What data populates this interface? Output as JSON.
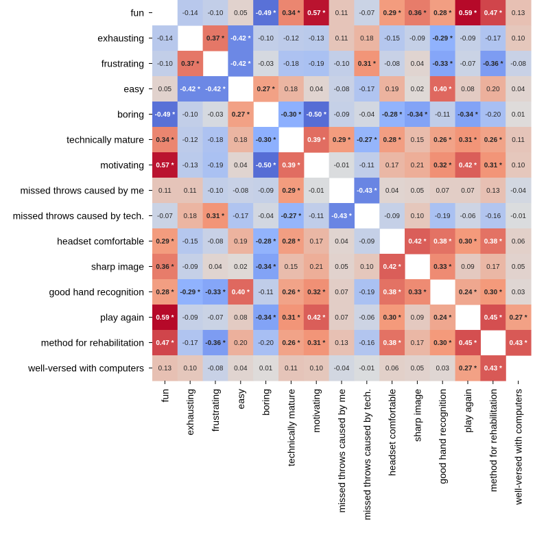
{
  "chart_data": {
    "type": "heatmap",
    "title": "",
    "xlabel": "",
    "ylabel": "",
    "colormap": "coolwarm",
    "vmin": -0.6,
    "vmax": 0.6,
    "significance_marker": "*",
    "labels": [
      "fun",
      "exhausting",
      "frustrating",
      "easy",
      "boring",
      "technically mature",
      "motivating",
      "missed throws caused by me",
      "missed throws caused by tech.",
      "headset comfortable",
      "sharp image",
      "good hand recognition",
      "play again",
      "method for rehabilitation",
      "well-versed with computers"
    ],
    "values": [
      [
        null,
        -0.14,
        -0.1,
        0.05,
        -0.49,
        0.34,
        0.57,
        0.11,
        -0.07,
        0.29,
        0.36,
        0.28,
        0.59,
        0.47,
        0.13
      ],
      [
        -0.14,
        null,
        0.37,
        -0.42,
        -0.1,
        -0.12,
        -0.13,
        0.11,
        0.18,
        -0.15,
        -0.09,
        -0.29,
        -0.09,
        -0.17,
        0.1
      ],
      [
        -0.1,
        0.37,
        null,
        -0.42,
        -0.03,
        -0.18,
        -0.19,
        -0.1,
        0.31,
        -0.08,
        0.04,
        -0.33,
        -0.07,
        -0.36,
        -0.08
      ],
      [
        0.05,
        -0.42,
        -0.42,
        null,
        0.27,
        0.18,
        0.04,
        -0.08,
        -0.17,
        0.19,
        0.02,
        0.4,
        0.08,
        0.2,
        0.04
      ],
      [
        -0.49,
        -0.1,
        -0.03,
        0.27,
        null,
        -0.3,
        -0.5,
        -0.09,
        -0.04,
        -0.28,
        -0.34,
        -0.11,
        -0.34,
        -0.2,
        0.01
      ],
      [
        0.34,
        -0.12,
        -0.18,
        0.18,
        -0.3,
        null,
        0.39,
        0.29,
        -0.27,
        0.28,
        0.15,
        0.26,
        0.31,
        0.26,
        0.11
      ],
      [
        0.57,
        -0.13,
        -0.19,
        0.04,
        -0.5,
        0.39,
        null,
        -0.01,
        -0.11,
        0.17,
        0.21,
        0.32,
        0.42,
        0.31,
        0.1
      ],
      [
        0.11,
        0.11,
        -0.1,
        -0.08,
        -0.09,
        0.29,
        -0.01,
        null,
        -0.43,
        0.04,
        0.05,
        0.07,
        0.07,
        0.13,
        -0.04
      ],
      [
        -0.07,
        0.18,
        0.31,
        -0.17,
        -0.04,
        -0.27,
        -0.11,
        -0.43,
        null,
        -0.09,
        0.1,
        -0.19,
        -0.06,
        -0.16,
        -0.01
      ],
      [
        0.29,
        -0.15,
        -0.08,
        0.19,
        -0.28,
        0.28,
        0.17,
        0.04,
        -0.09,
        null,
        0.42,
        0.38,
        0.3,
        0.38,
        0.06
      ],
      [
        0.36,
        -0.09,
        0.04,
        0.02,
        -0.34,
        0.15,
        0.21,
        0.05,
        0.1,
        0.42,
        null,
        0.33,
        0.09,
        0.17,
        0.05
      ],
      [
        0.28,
        -0.29,
        -0.33,
        0.4,
        -0.11,
        0.26,
        0.32,
        0.07,
        -0.19,
        0.38,
        0.33,
        null,
        0.24,
        0.3,
        0.03
      ],
      [
        0.59,
        -0.09,
        -0.07,
        0.08,
        -0.34,
        0.31,
        0.42,
        0.07,
        -0.06,
        0.3,
        0.09,
        0.24,
        null,
        0.45,
        0.27
      ],
      [
        0.47,
        -0.17,
        -0.36,
        0.2,
        -0.2,
        0.26,
        0.31,
        0.13,
        -0.16,
        0.38,
        0.17,
        0.3,
        0.45,
        null,
        0.43
      ],
      [
        0.13,
        0.1,
        -0.08,
        0.04,
        0.01,
        0.11,
        0.1,
        -0.04,
        -0.01,
        0.06,
        0.05,
        0.03,
        0.27,
        0.43,
        null
      ]
    ],
    "significant": [
      [
        false,
        false,
        false,
        false,
        true,
        true,
        true,
        false,
        false,
        true,
        true,
        true,
        true,
        true,
        false
      ],
      [
        false,
        false,
        true,
        true,
        false,
        false,
        false,
        false,
        false,
        false,
        false,
        true,
        false,
        false,
        false
      ],
      [
        false,
        true,
        false,
        true,
        false,
        false,
        false,
        false,
        true,
        false,
        false,
        true,
        false,
        true,
        false
      ],
      [
        false,
        true,
        true,
        false,
        true,
        false,
        false,
        false,
        false,
        false,
        false,
        true,
        false,
        false,
        false
      ],
      [
        true,
        false,
        false,
        true,
        false,
        true,
        true,
        false,
        false,
        true,
        true,
        false,
        true,
        false,
        false
      ],
      [
        true,
        false,
        false,
        false,
        true,
        false,
        true,
        true,
        true,
        true,
        false,
        true,
        true,
        true,
        false
      ],
      [
        true,
        false,
        false,
        false,
        true,
        true,
        false,
        false,
        false,
        false,
        false,
        true,
        true,
        true,
        false
      ],
      [
        false,
        false,
        false,
        false,
        false,
        true,
        false,
        false,
        true,
        false,
        false,
        false,
        false,
        false,
        false
      ],
      [
        false,
        false,
        true,
        false,
        false,
        true,
        false,
        true,
        false,
        false,
        false,
        false,
        false,
        false,
        false
      ],
      [
        true,
        false,
        false,
        false,
        true,
        true,
        false,
        false,
        false,
        false,
        true,
        true,
        true,
        true,
        false
      ],
      [
        true,
        false,
        false,
        false,
        true,
        false,
        false,
        false,
        false,
        true,
        false,
        true,
        false,
        false,
        false
      ],
      [
        true,
        true,
        true,
        true,
        false,
        true,
        true,
        false,
        false,
        true,
        true,
        false,
        true,
        true,
        false
      ],
      [
        true,
        false,
        false,
        false,
        true,
        true,
        true,
        false,
        false,
        true,
        false,
        true,
        false,
        true,
        true
      ],
      [
        true,
        false,
        true,
        false,
        false,
        true,
        true,
        false,
        false,
        true,
        false,
        true,
        true,
        false,
        true
      ],
      [
        false,
        false,
        false,
        false,
        false,
        false,
        false,
        false,
        false,
        false,
        false,
        false,
        true,
        true,
        false
      ]
    ]
  }
}
